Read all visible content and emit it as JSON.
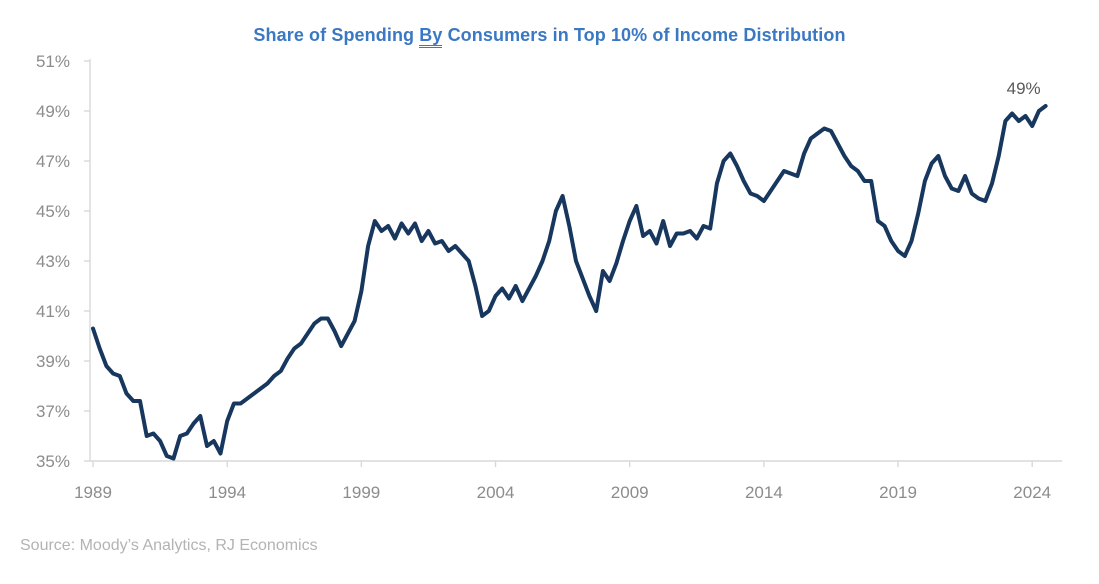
{
  "title": {
    "part1": "Share of Spending ",
    "part2": "By",
    "part3": " Consumers in Top 10% of Income Distribution"
  },
  "source": "Source: Moody’s Analytics, RJ Economics",
  "colors": {
    "line": "#17375E",
    "title": "#3B78C3",
    "axis_text": "#8C8C8C",
    "end_label": "#595959",
    "axis_line": "#D9D9D9",
    "source_text": "#B3B3B3"
  },
  "chart_data": {
    "type": "line",
    "title": "Share of Spending By Consumers in Top 10% of Income Distribution",
    "xlabel": "",
    "ylabel": "",
    "x_start_year": 1989,
    "x_step_years": 0.25,
    "x_tick_labels": [
      "1989",
      "1994",
      "1999",
      "2004",
      "2009",
      "2014",
      "2019",
      "2024"
    ],
    "y_tick_labels": [
      "51%",
      "49%",
      "47%",
      "45%",
      "43%",
      "41%",
      "39%",
      "37%",
      "35%"
    ],
    "ylim": [
      35,
      51
    ],
    "xlim": [
      1989,
      2025
    ],
    "grid": false,
    "legend": "none",
    "end_annotation": "49%",
    "series_name": "Share of spending, top 10% of income distribution (%, quarterly)",
    "values": [
      40.3,
      39.5,
      38.8,
      38.5,
      38.4,
      37.7,
      37.4,
      37.4,
      36.0,
      36.1,
      35.8,
      35.2,
      35.1,
      36.0,
      36.1,
      36.5,
      36.8,
      35.6,
      35.8,
      35.3,
      36.6,
      37.3,
      37.3,
      37.5,
      37.7,
      37.9,
      38.1,
      38.4,
      38.6,
      39.1,
      39.5,
      39.7,
      40.1,
      40.5,
      40.7,
      40.7,
      40.2,
      39.6,
      40.1,
      40.6,
      41.8,
      43.6,
      44.6,
      44.2,
      44.4,
      43.9,
      44.5,
      44.1,
      44.5,
      43.8,
      44.2,
      43.7,
      43.8,
      43.4,
      43.6,
      43.3,
      43.0,
      42.0,
      40.8,
      41.0,
      41.6,
      41.9,
      41.5,
      42.0,
      41.4,
      41.9,
      42.4,
      43.0,
      43.8,
      45.0,
      45.6,
      44.4,
      43.0,
      42.3,
      41.6,
      41.0,
      42.6,
      42.2,
      42.9,
      43.8,
      44.6,
      45.2,
      44.0,
      44.2,
      43.7,
      44.6,
      43.6,
      44.1,
      44.1,
      44.2,
      43.9,
      44.4,
      44.3,
      46.1,
      47.0,
      47.3,
      46.8,
      46.2,
      45.7,
      45.6,
      45.4,
      45.8,
      46.2,
      46.6,
      46.5,
      46.4,
      47.3,
      47.9,
      48.1,
      48.3,
      48.2,
      47.7,
      47.2,
      46.8,
      46.6,
      46.2,
      46.2,
      44.6,
      44.4,
      43.8,
      43.4,
      43.2,
      43.8,
      44.9,
      46.2,
      46.9,
      47.2,
      46.4,
      45.9,
      45.8,
      46.4,
      45.7,
      45.5,
      45.4,
      46.1,
      47.2,
      48.6,
      48.9,
      48.6,
      48.8,
      48.4,
      49.0,
      49.2
    ]
  }
}
